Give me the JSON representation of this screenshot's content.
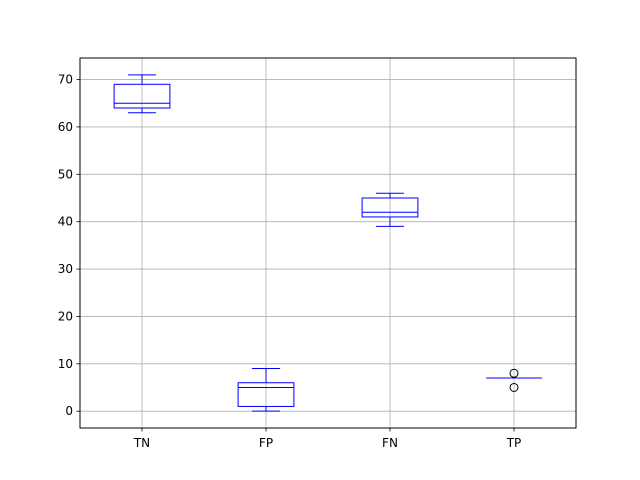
{
  "chart_data": {
    "type": "box",
    "title": "",
    "xlabel": "",
    "ylabel": "",
    "ylim": [
      -3.55,
      74.55
    ],
    "yticks": [
      0,
      10,
      20,
      30,
      40,
      50,
      60,
      70
    ],
    "grid": true,
    "colors": {
      "box": "#0000ff",
      "grid": "#b0b0b0",
      "axis": "#000000"
    },
    "categories": [
      "TN",
      "FP",
      "FN",
      "TP"
    ],
    "boxes": [
      {
        "label": "TN",
        "whislo": 63,
        "q1": 64,
        "med": 65,
        "q3": 69,
        "whishi": 71,
        "fliers": []
      },
      {
        "label": "FP",
        "whislo": 0,
        "q1": 1,
        "med": 5,
        "q3": 6,
        "whishi": 9,
        "fliers": []
      },
      {
        "label": "FN",
        "whislo": 39,
        "q1": 41,
        "med": 42,
        "q3": 45,
        "whishi": 46,
        "fliers": []
      },
      {
        "label": "TP",
        "whislo": 7,
        "q1": 7,
        "med": 7,
        "q3": 7,
        "whishi": 7,
        "fliers": [
          5,
          8
        ]
      }
    ]
  }
}
